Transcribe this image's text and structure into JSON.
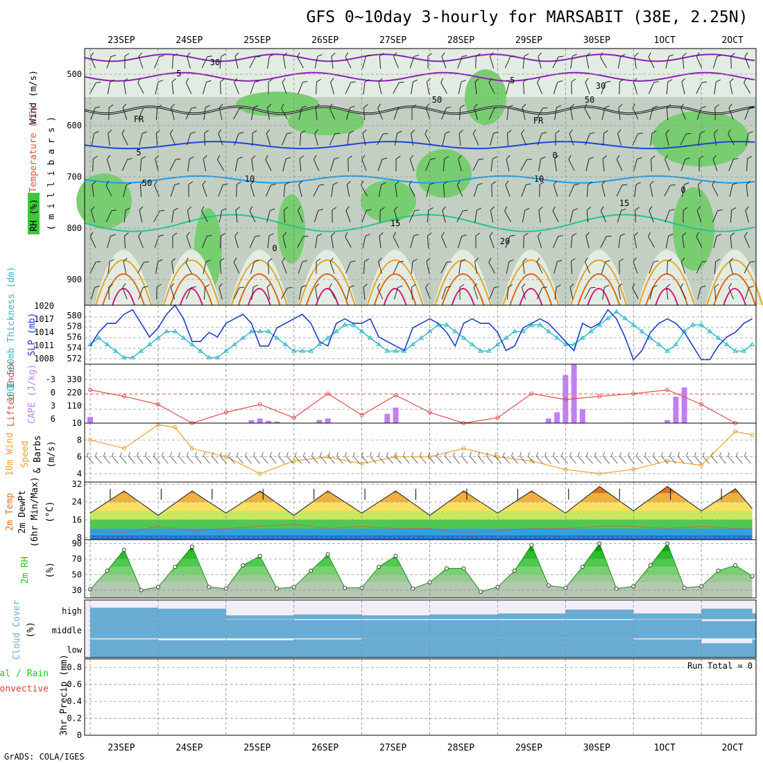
{
  "header": {
    "title": "GFS 0~10day 3-hourly for MARSABIT (38E, 2.25N)",
    "credit": "GrADS: COLA/IGES"
  },
  "dates": [
    "23SEP",
    "24SEP",
    "25SEP",
    "26SEP",
    "27SEP",
    "28SEP",
    "29SEP",
    "30SEP",
    "1OCT",
    "2OCT"
  ],
  "colors": {
    "rh_dark": "#c3cfc3",
    "rh_mid": "#e3ece3",
    "rh_green": "#74cc6c",
    "t_purple": "#8c1fb4",
    "t_black": "#000000",
    "t_blue1": "#1c45d8",
    "t_blue2": "#1c9ae8",
    "t_green": "#1ec88c",
    "t_orange": "#e8a020",
    "t_dkorange": "#e06410",
    "t_magenta": "#d8127c",
    "slp": "#1c3cc8",
    "thick": "#2cb8c8",
    "li": "#e05050",
    "cape": "#c080f0",
    "wind10": "#e8a030",
    "temp_fill": "#e07018",
    "dew": "#d84040",
    "rh2m": "#1ec81e",
    "cloud": "#68acd4",
    "cloud_bg": "#f2eef6"
  },
  "panels": {
    "upper": {
      "ylabel_wind": "Wind (m/s)",
      "ylabel_temp": "Temperature (°C)",
      "ylabel_rh": "RH (%)",
      "ylabel_mb": "( m i l l i b a r s )",
      "yticks": [
        "500",
        "600",
        "700",
        "800",
        "900"
      ],
      "contour_labels": [
        "5",
        "-5",
        "FR",
        "FR",
        "5",
        "10",
        "10",
        "15",
        "15",
        "20",
        "30",
        "30",
        "50",
        "50",
        "50",
        "0",
        "0",
        "0"
      ]
    },
    "slp": {
      "ylabel_thick": "1000-500mb Thickness (dm)",
      "ylabel_slp": "SLP (mb)",
      "left_ticks": [
        "580",
        "578",
        "576",
        "574",
        "572"
      ],
      "right_ticks": [
        "1020",
        "1017",
        "1014",
        "1011",
        "1008"
      ]
    },
    "cape": {
      "ylabel_li": "Lifted Index",
      "ylabel_cape": "CAPE (J/kg)",
      "left_ticks": [
        "-3",
        "0",
        "3",
        "6"
      ],
      "right_ticks": [
        "330",
        "220",
        "110"
      ]
    },
    "wind10": {
      "ylabel1": "10m Wind",
      "ylabel2": "Speed",
      "ylabel3": "& Barbs",
      "ylabel4": "(m/s)",
      "ticks": [
        "10",
        "8",
        "6",
        "4"
      ]
    },
    "temp": {
      "ylabel1": "2m Temp",
      "ylabel2": "2m DewPt",
      "ylabel3": "(6hr Min/Max)",
      "ylabel4": "(°C)",
      "ticks": [
        "32",
        "24",
        "16",
        "8"
      ]
    },
    "rh": {
      "ylabel1": "2m RH",
      "ylabel2": "(%)",
      "ticks": [
        "90",
        "70",
        "50",
        "30"
      ]
    },
    "cloud": {
      "ylabel1": "Cloud Cover",
      "ylabel2": "(%)",
      "levels": [
        "high",
        "middle",
        "low"
      ]
    },
    "precip": {
      "ylabel1": "Total / Rain",
      "ylabel2": "Convective",
      "ylabel3": "3hr Precip (mm)",
      "ticks": [
        "0.8",
        "0.6",
        "0.4",
        "0.2",
        "0"
      ],
      "run_total": "Run Total = 0"
    }
  },
  "chart_data": [
    {
      "type": "line",
      "name": "cross-section contour labels",
      "ylim_mb": [
        450,
        950
      ],
      "levels_mb": [
        500,
        600,
        700,
        800,
        900
      ],
      "temperature_contours_c": [
        -5,
        0,
        5,
        10,
        15,
        20
      ],
      "rh_contours_pct": [
        30,
        50,
        70,
        90
      ]
    },
    {
      "type": "line",
      "x_days": [
        0,
        0.125,
        0.25,
        0.375,
        0.5,
        0.625,
        0.75,
        0.875,
        1,
        1.125,
        1.25,
        1.375,
        1.5,
        1.625,
        1.75,
        1.875,
        2,
        2.125,
        2.25,
        2.375,
        2.5,
        2.625,
        2.75,
        2.875,
        3,
        3.125,
        3.25,
        3.375,
        3.5,
        3.625,
        3.75,
        3.875,
        4,
        4.125,
        4.25,
        4.375,
        4.5,
        4.625,
        4.75,
        4.875,
        5,
        5.125,
        5.25,
        5.375,
        5.5,
        5.625,
        5.75,
        5.875,
        6,
        6.125,
        6.25,
        6.375,
        6.5,
        6.625,
        6.75,
        6.875,
        7,
        7.125,
        7.25,
        7.375,
        7.5,
        7.625,
        7.75,
        7.875,
        8,
        8.125,
        8.25,
        8.375,
        8.5,
        8.625,
        8.75,
        8.875,
        9,
        9.125,
        9.25,
        9.375,
        9.5,
        9.625,
        9.75
      ],
      "series": [
        {
          "name": "SLP (mb)",
          "axis": "right",
          "ylim": [
            1007,
            1020
          ],
          "values": [
            1011,
            1014,
            1016,
            1016,
            1018,
            1019,
            1016,
            1013,
            1015,
            1018,
            1020,
            1017,
            1012,
            1012,
            1014,
            1013,
            1016,
            1017,
            1018,
            1016,
            1011,
            1011,
            1015,
            1016,
            1017,
            1018,
            1016,
            1012,
            1011,
            1016,
            1017,
            1016,
            1016,
            1017,
            1013,
            1012,
            1011,
            1010,
            1015,
            1016,
            1017,
            1016,
            1014,
            1011,
            1016,
            1017,
            1016,
            1016,
            1014,
            1010,
            1011,
            1015,
            1016,
            1017,
            1016,
            1014,
            1012,
            1010,
            1016,
            1015,
            1016,
            1019,
            1017,
            1013,
            1008,
            1010,
            1014,
            1016,
            1017,
            1016,
            1014,
            1011,
            1008,
            1008,
            1011,
            1013,
            1014,
            1016,
            1017
          ]
        },
        {
          "name": "1000-500mb Thickness (dm)",
          "axis": "left",
          "ylim": [
            572,
            581
          ],
          "values": [
            575,
            576,
            575,
            574,
            573,
            573,
            574,
            575,
            576,
            577,
            577,
            576,
            575,
            574,
            573,
            573,
            574,
            575,
            576,
            577,
            577,
            577,
            576,
            575,
            574,
            574,
            574,
            575,
            576,
            577,
            578,
            578,
            577,
            576,
            575,
            574,
            574,
            574,
            575,
            576,
            577,
            578,
            578,
            577,
            576,
            575,
            574,
            574,
            575,
            576,
            577,
            577,
            578,
            578,
            577,
            576,
            575,
            575,
            576,
            577,
            578,
            579,
            580,
            579,
            578,
            577,
            576,
            575,
            574,
            575,
            577,
            578,
            578,
            577,
            576,
            575,
            574,
            574,
            575
          ]
        }
      ]
    },
    {
      "type": "bar",
      "x_days": [
        0,
        0.375,
        0.875,
        1.0,
        2.375,
        2.5,
        2.625,
        2.75,
        3.375,
        3.5,
        4.375,
        4.5,
        4.625,
        5.0,
        5.125,
        6.75,
        6.875,
        7.0,
        7.125,
        7.25,
        8.5,
        8.625,
        8.75
      ],
      "series": [
        {
          "name": "CAPE (J/kg)",
          "ylim": [
            0,
            380
          ],
          "values": [
            40,
            0,
            0,
            0,
            20,
            30,
            15,
            10,
            20,
            30,
            60,
            100,
            0,
            0,
            0,
            30,
            70,
            310,
            380,
            90,
            20,
            170,
            230
          ]
        }
      ],
      "lifted_index": {
        "ylim": [
          6,
          -5
        ],
        "x_days": [
          0,
          0.5,
          1,
          1.5,
          2,
          2.5,
          3,
          3.5,
          4,
          4.5,
          5,
          5.5,
          6,
          6.5,
          7,
          7.5,
          8,
          8.5,
          9,
          9.5
        ],
        "values": [
          -0.2,
          1,
          2.5,
          6,
          4,
          2.5,
          5,
          0.5,
          4.5,
          0.8,
          4,
          6,
          5,
          0.5,
          1.6,
          1,
          0.5,
          -0.2,
          2.5,
          6
        ]
      }
    },
    {
      "type": "line",
      "x_days": [
        0,
        0.5,
        1,
        1.25,
        1.5,
        2,
        2.5,
        3,
        3.5,
        4,
        4.5,
        5,
        5.5,
        6,
        6.5,
        7,
        7.5,
        8,
        8.5,
        9,
        9.5,
        9.75
      ],
      "series": [
        {
          "name": "10m Wind Speed (m/s)",
          "ylim": [
            3,
            10
          ],
          "values": [
            8,
            7,
            9.8,
            9.5,
            7,
            6,
            4,
            5.5,
            6,
            5.2,
            6,
            6,
            7,
            6,
            5.5,
            4.5,
            4,
            4.5,
            5.5,
            5,
            9,
            8.6
          ]
        }
      ]
    },
    {
      "type": "area",
      "x_days": [
        0,
        0.5,
        1,
        1.5,
        2,
        2.5,
        3,
        3.5,
        4,
        4.5,
        5,
        5.5,
        6,
        6.5,
        7,
        7.5,
        8,
        8.5,
        9,
        9.5,
        9.75
      ],
      "series": [
        {
          "name": "2m Temp (°C)",
          "ylim": [
            7,
            33
          ],
          "values": [
            19,
            29,
            18,
            29,
            19,
            29,
            18,
            29,
            19,
            29,
            18,
            29,
            19,
            29,
            19,
            31,
            20,
            31,
            20,
            30,
            21
          ]
        },
        {
          "name": "2m DewPt (°C)",
          "values": [
            11,
            10,
            13,
            11,
            12,
            13,
            14,
            12,
            13,
            12,
            12,
            10,
            11,
            12,
            12,
            13,
            13,
            12,
            13,
            12,
            12
          ]
        }
      ]
    },
    {
      "type": "area",
      "x_days": [
        0,
        0.25,
        0.5,
        0.75,
        1,
        1.25,
        1.5,
        1.75,
        2,
        2.25,
        2.5,
        2.75,
        3,
        3.25,
        3.5,
        3.75,
        4,
        4.25,
        4.5,
        4.75,
        5,
        5.25,
        5.5,
        5.75,
        6,
        6.25,
        6.5,
        6.75,
        7,
        7.25,
        7.5,
        7.75,
        8,
        8.25,
        8.5,
        8.75,
        9,
        9.25,
        9.5,
        9.75
      ],
      "series": [
        {
          "name": "2m RH (%)",
          "ylim": [
            20,
            95
          ],
          "values": [
            31,
            55,
            82,
            30,
            34,
            60,
            86,
            34,
            32,
            62,
            74,
            32,
            34,
            55,
            76,
            33,
            33,
            60,
            74,
            32,
            40,
            58,
            58,
            28,
            34,
            55,
            88,
            36,
            33,
            60,
            90,
            32,
            35,
            62,
            90,
            33,
            35,
            55,
            62,
            48
          ]
        }
      ]
    },
    {
      "type": "bar",
      "name": "Cloud Cover (%)",
      "levels": [
        "high",
        "middle",
        "low"
      ],
      "x_days": [
        0,
        1,
        2,
        3,
        4,
        5,
        6,
        7,
        8,
        9,
        9.75
      ],
      "high_values": [
        60,
        55,
        20,
        25,
        20,
        25,
        30,
        50,
        30,
        55,
        30
      ],
      "middle_values": [
        100,
        100,
        98,
        95,
        95,
        95,
        95,
        95,
        98,
        90,
        92
      ],
      "low_values": [
        95,
        90,
        90,
        95,
        100,
        100,
        100,
        100,
        95,
        75,
        95
      ]
    },
    {
      "type": "bar",
      "name": "3hr Precip (mm)",
      "ylim": [
        0,
        0.9
      ],
      "x_days": [
        0,
        1,
        2,
        3,
        4,
        5,
        6,
        7,
        8,
        9
      ],
      "values": [
        0,
        0,
        0,
        0,
        0,
        0,
        0,
        0,
        0,
        0
      ]
    }
  ]
}
